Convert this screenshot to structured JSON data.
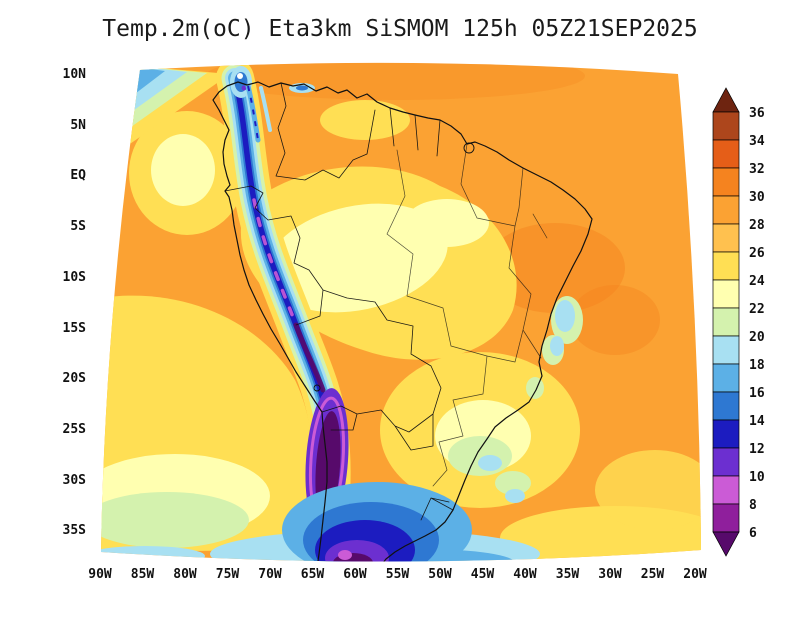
{
  "title": "Temp.2m(oC) Eta3km SiSMOM 125h 05Z21SEP2025",
  "chart_data": {
    "type": "heatmap",
    "title": "Temp.2m(oC) Eta3km SiSMOM 125h 05Z21SEP2025",
    "variable": "Temp.2m (oC)",
    "model": "Eta3km",
    "system": "SiSMOM",
    "forecast_hour": "125h",
    "valid_time": "05Z21SEP2025",
    "region": "South America",
    "y_axis": {
      "label": "latitude",
      "ticks": [
        "10N",
        "5N",
        "EQ",
        "5S",
        "10S",
        "15S",
        "20S",
        "25S",
        "30S",
        "35S"
      ]
    },
    "x_axis": {
      "label": "longitude",
      "ticks": [
        "90W",
        "85W",
        "80W",
        "75W",
        "70W",
        "65W",
        "60W",
        "55W",
        "50W",
        "45W",
        "40W",
        "35W",
        "30W",
        "25W",
        "20W"
      ]
    },
    "colorbar": {
      "orientation": "vertical",
      "position": "right",
      "unit": "oC",
      "tick_labels": [
        "36",
        "34",
        "32",
        "30",
        "28",
        "26",
        "24",
        "22",
        "20",
        "18",
        "16",
        "14",
        "12",
        "10",
        "8",
        "6"
      ],
      "levels": [
        6,
        8,
        10,
        12,
        14,
        16,
        18,
        20,
        22,
        24,
        26,
        28,
        30,
        32,
        34,
        36
      ],
      "colors_top_to_bottom": [
        "#6e2410",
        "#ad461c",
        "#e55e18",
        "#f5831f",
        "#fba233",
        "#ffc14f",
        "#ffdf54",
        "#ffffb0",
        "#d4f2ae",
        "#a8e0f2",
        "#5cb0e6",
        "#2e78d2",
        "#1c1cc0",
        "#6c2fd0",
        "#cb5bd6",
        "#8f1f9c",
        "#570a6b"
      ],
      "has_top_arrow": true,
      "has_bottom_arrow": true
    }
  }
}
